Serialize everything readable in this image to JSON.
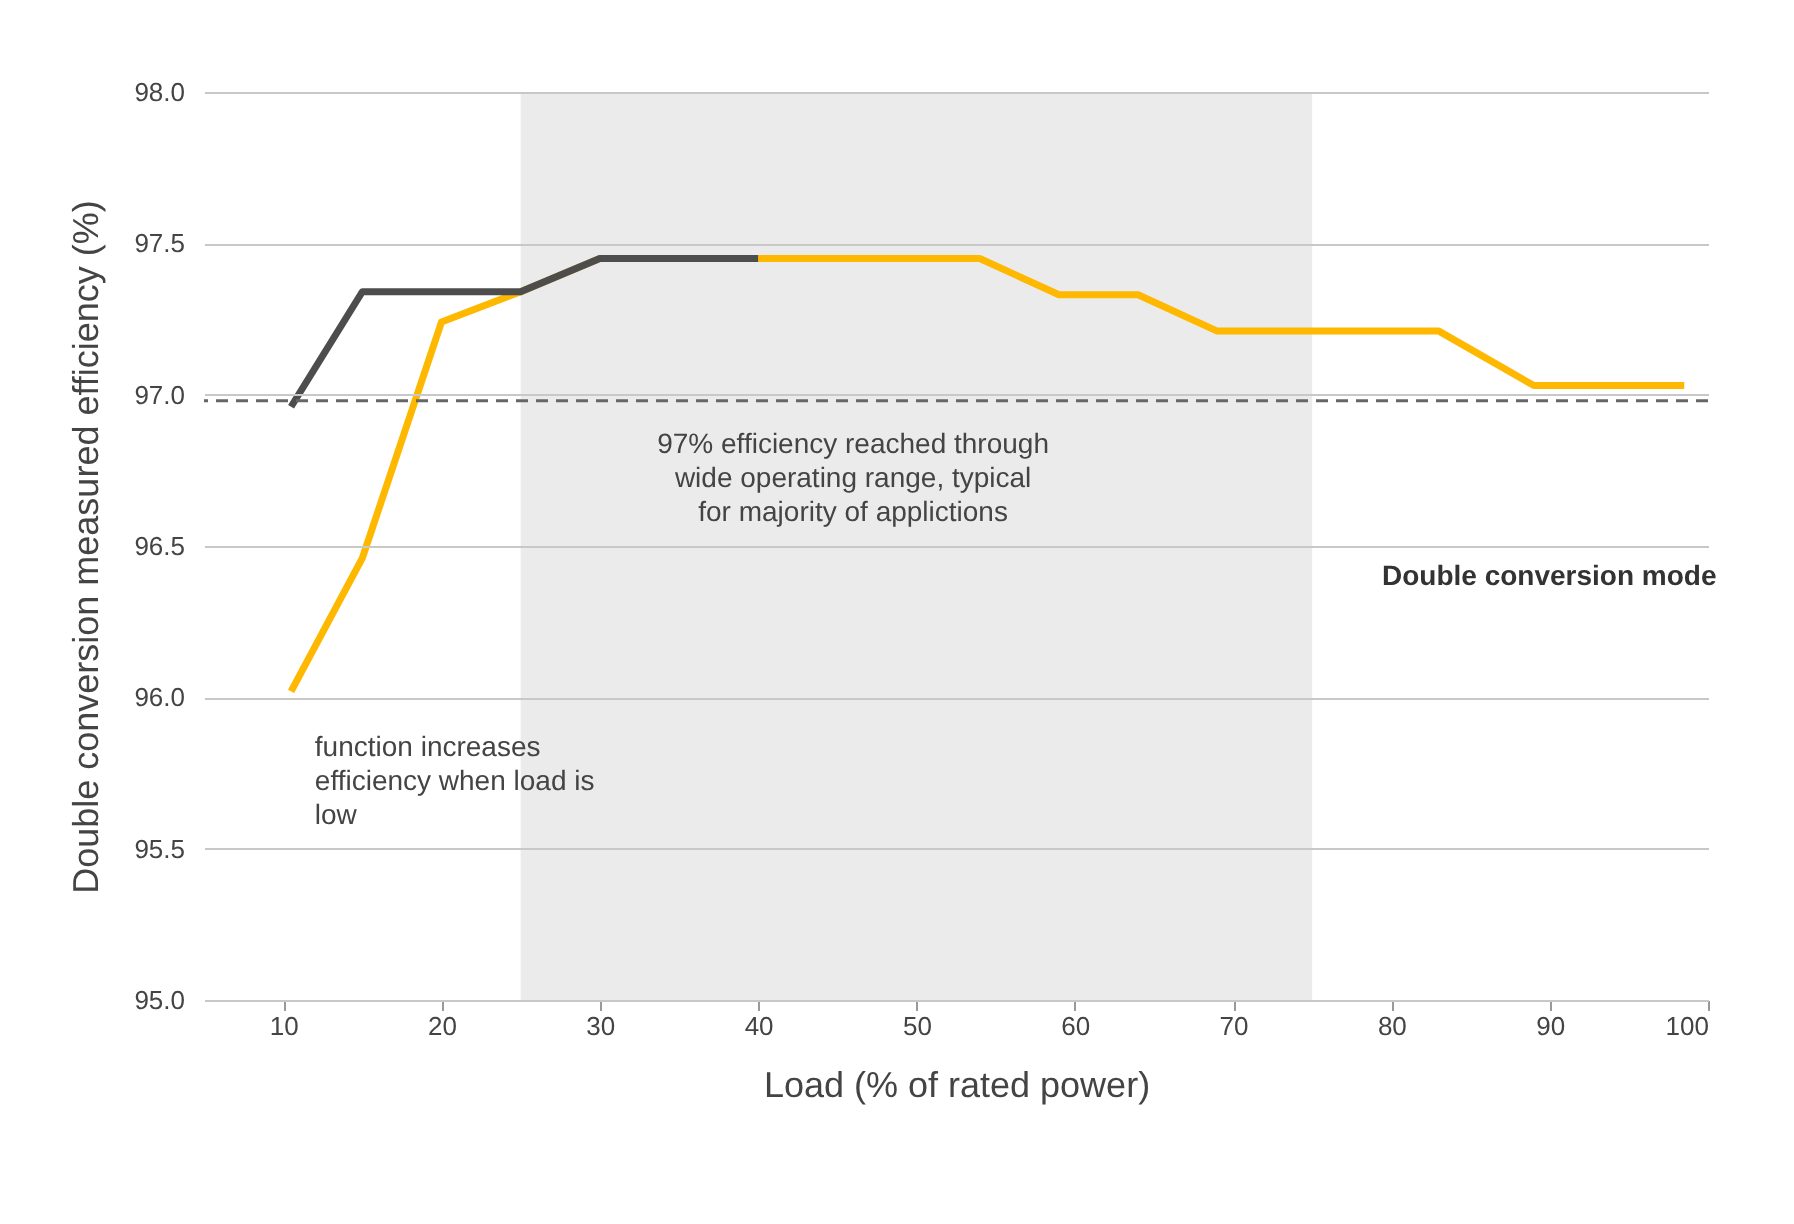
{
  "chart_data": {
    "type": "line",
    "xlabel": "Load (% of rated power)",
    "ylabel": "Double conversion measured efficiency (%)",
    "xlim": [
      5,
      100
    ],
    "xticks": [
      10,
      20,
      30,
      40,
      50,
      60,
      70,
      80,
      90,
      100
    ],
    "ylim": [
      95,
      98
    ],
    "yticks": [
      {
        "value": 95,
        "label": "95.0"
      },
      {
        "value": 95.5,
        "label": "95.5"
      },
      {
        "value": 96,
        "label": "96.0"
      },
      {
        "value": 96.5,
        "label": "96.5"
      },
      {
        "value": 97,
        "label": "97.0"
      },
      {
        "value": 97.5,
        "label": "97.5"
      },
      {
        "value": 98,
        "label": "98.0"
      }
    ],
    "grid": "y",
    "legend": "right",
    "line_style": "solid",
    "series": [
      {
        "color": "#4d4d4d",
        "x": [
          10.5,
          15,
          25,
          30,
          40
        ],
        "values": [
          96.96,
          97.34,
          97.34,
          97.45,
          97.45
        ]
      },
      {
        "name": "Double conversion mode",
        "color": "#ffb800",
        "x": [
          10.5,
          15,
          20,
          25,
          30,
          54,
          59,
          64,
          69,
          83,
          89,
          98.5
        ],
        "values": [
          96.02,
          96.46,
          97.24,
          97.34,
          97.45,
          97.45,
          97.33,
          97.33,
          97.21,
          97.21,
          97.03,
          97.03
        ]
      }
    ],
    "ref_lines": [
      {
        "axis": "y",
        "value": 96.98,
        "color": "#666666",
        "line_style": "dashed"
      }
    ],
    "bands": [
      {
        "axis": "x",
        "from": 25,
        "to": 75,
        "color": "#ebebeb"
      }
    ],
    "annotations": [
      "97% efficiency reached through wide operating range, typical for majority of applictions",
      "function increases efficiency when load is low"
    ]
  }
}
